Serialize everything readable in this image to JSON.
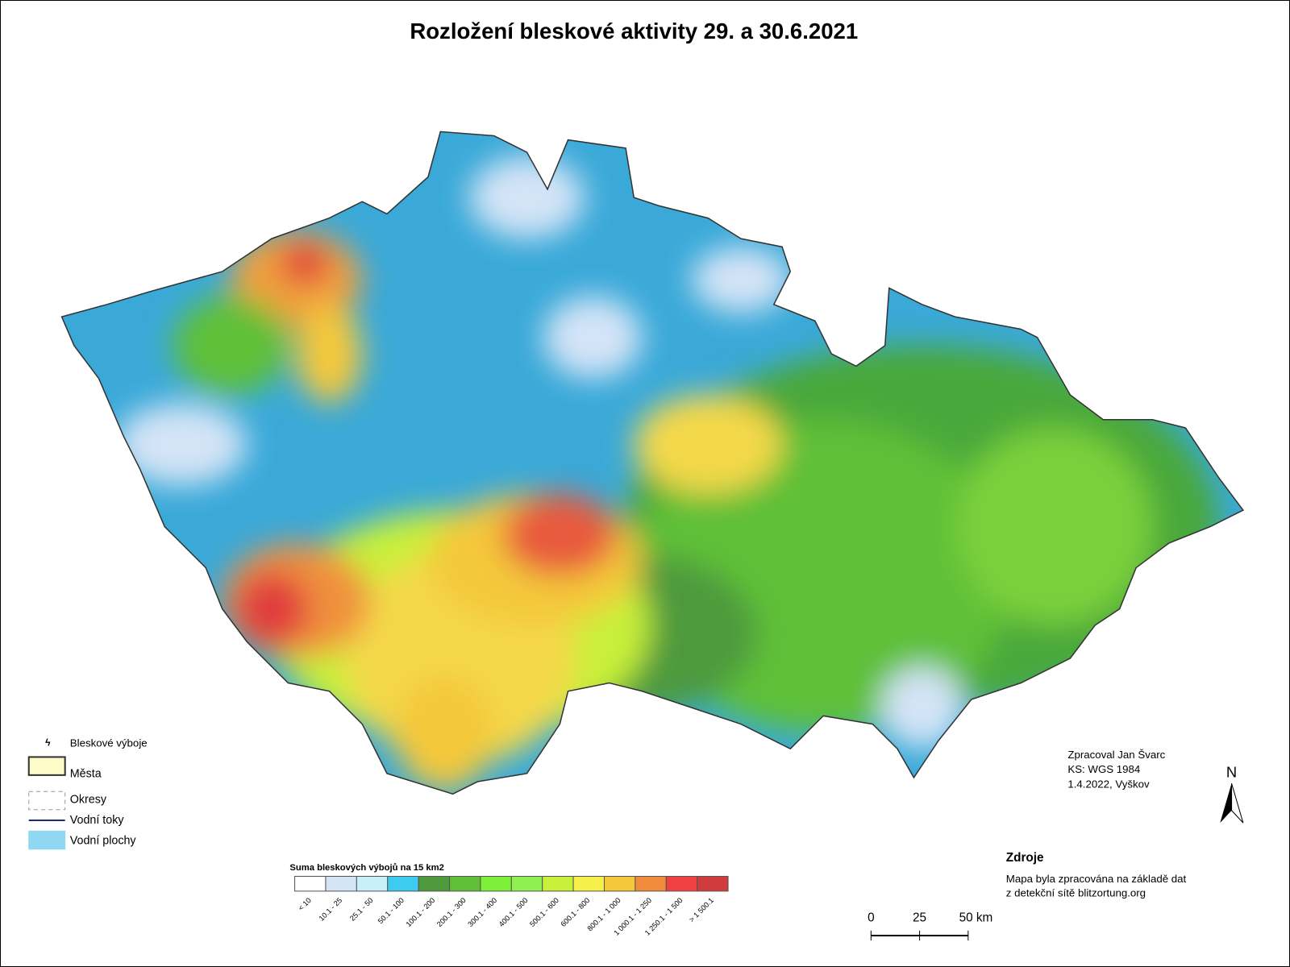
{
  "title": "Rozložení bleskové aktivity 29. a 30.6.2021",
  "legend": {
    "items": [
      "Bleskové výboje",
      "Města",
      "Okresy",
      "Vodní toky",
      "Vodní plochy"
    ]
  },
  "color_scale": {
    "title": "Suma bleskových výbojů na 15 km2",
    "classes": [
      {
        "label": "< 10",
        "color": "#ffffff"
      },
      {
        "label": "10.1 - 25",
        "color": "#d4e4f7"
      },
      {
        "label": "25.1 - 50",
        "color": "#c8f0fb"
      },
      {
        "label": "50.1 - 100",
        "color": "#3ecbf0"
      },
      {
        "label": "100.1 - 200",
        "color": "#4e9a3c"
      },
      {
        "label": "200.1 - 300",
        "color": "#5fc038"
      },
      {
        "label": "300.1 - 400",
        "color": "#7ef03a"
      },
      {
        "label": "400.1 - 500",
        "color": "#8ff050"
      },
      {
        "label": "500.1 - 600",
        "color": "#c8f03a"
      },
      {
        "label": "600.1 - 800",
        "color": "#f7f04a"
      },
      {
        "label": "800.1 - 1 000",
        "color": "#f4c83a"
      },
      {
        "label": "1 000.1 - 1 250",
        "color": "#f08c3c"
      },
      {
        "label": "1 250.1 - 1 500",
        "color": "#f04040"
      },
      {
        "label": "> 1 500.1",
        "color": "#d03c3c"
      }
    ]
  },
  "credits": [
    "Zpracoval Jan Švarc",
    "KS: WGS 1984",
    "1.4.2022, Vyškov"
  ],
  "sources": {
    "title": "Zdroje",
    "lines": [
      "Mapa byla zpracována na základě dat",
      "z detekční sítě blitzortung.org"
    ]
  },
  "scale_bar": [
    "0",
    "25",
    "50 km"
  ],
  "north": "N"
}
